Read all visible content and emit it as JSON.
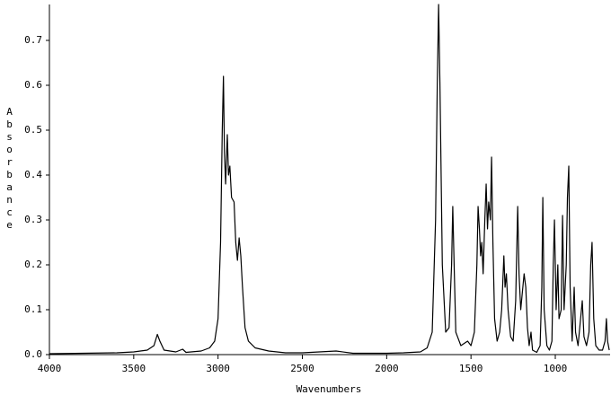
{
  "chart_data": {
    "type": "line",
    "x_label": "Wavenumbers",
    "y_label": "Absorbance",
    "xlim": [
      4000,
      675
    ],
    "ylim": [
      0,
      0.78
    ],
    "xticks": [
      4000,
      3500,
      3000,
      2500,
      2000,
      1500,
      1000
    ],
    "yticks": [
      {
        "value": 0,
        "label": "0.0"
      },
      0.1,
      0.2,
      0.3,
      0.4,
      0.5,
      0.6,
      0.7
    ],
    "grid": false,
    "x": [
      4000,
      3800,
      3600,
      3500,
      3420,
      3380,
      3360,
      3345,
      3320,
      3250,
      3210,
      3190,
      3100,
      3050,
      3020,
      3000,
      2985,
      2975,
      2968,
      2962,
      2955,
      2945,
      2938,
      2930,
      2920,
      2905,
      2895,
      2885,
      2875,
      2865,
      2855,
      2840,
      2820,
      2780,
      2700,
      2600,
      2500,
      2300,
      2200,
      2000,
      1900,
      1800,
      1760,
      1730,
      1710,
      1700,
      1692,
      1684,
      1670,
      1650,
      1630,
      1615,
      1608,
      1600,
      1590,
      1560,
      1520,
      1500,
      1480,
      1465,
      1458,
      1450,
      1443,
      1436,
      1428,
      1418,
      1410,
      1402,
      1395,
      1385,
      1378,
      1370,
      1360,
      1345,
      1330,
      1318,
      1305,
      1298,
      1290,
      1280,
      1265,
      1250,
      1235,
      1223,
      1215,
      1205,
      1195,
      1185,
      1175,
      1165,
      1155,
      1144,
      1135,
      1110,
      1090,
      1080,
      1074,
      1066,
      1050,
      1035,
      1020,
      1012,
      1005,
      995,
      985,
      978,
      965,
      957,
      948,
      935,
      928,
      920,
      912,
      900,
      888,
      880,
      865,
      850,
      840,
      830,
      815,
      800,
      790,
      782,
      772,
      760,
      740,
      720,
      705,
      697,
      690,
      680
    ],
    "series": [
      {
        "color": "#000000",
        "values": [
          0.002,
          0.003,
          0.004,
          0.006,
          0.01,
          0.02,
          0.045,
          0.03,
          0.01,
          0.006,
          0.012,
          0.005,
          0.008,
          0.015,
          0.03,
          0.08,
          0.25,
          0.5,
          0.62,
          0.45,
          0.38,
          0.49,
          0.4,
          0.42,
          0.35,
          0.34,
          0.25,
          0.21,
          0.26,
          0.22,
          0.15,
          0.06,
          0.03,
          0.015,
          0.008,
          0.004,
          0.004,
          0.008,
          0.003,
          0.003,
          0.004,
          0.006,
          0.015,
          0.05,
          0.3,
          0.6,
          0.78,
          0.6,
          0.2,
          0.05,
          0.06,
          0.2,
          0.33,
          0.2,
          0.05,
          0.02,
          0.03,
          0.02,
          0.05,
          0.2,
          0.33,
          0.28,
          0.22,
          0.25,
          0.18,
          0.3,
          0.38,
          0.28,
          0.34,
          0.3,
          0.44,
          0.25,
          0.08,
          0.03,
          0.05,
          0.1,
          0.22,
          0.15,
          0.18,
          0.1,
          0.04,
          0.03,
          0.12,
          0.33,
          0.18,
          0.1,
          0.14,
          0.18,
          0.15,
          0.06,
          0.02,
          0.05,
          0.01,
          0.005,
          0.02,
          0.15,
          0.35,
          0.1,
          0.02,
          0.01,
          0.03,
          0.2,
          0.3,
          0.1,
          0.2,
          0.08,
          0.1,
          0.31,
          0.1,
          0.2,
          0.35,
          0.42,
          0.15,
          0.03,
          0.15,
          0.05,
          0.02,
          0.08,
          0.12,
          0.04,
          0.02,
          0.05,
          0.2,
          0.25,
          0.08,
          0.02,
          0.01,
          0.01,
          0.03,
          0.08,
          0.03,
          0.01
        ]
      }
    ]
  }
}
